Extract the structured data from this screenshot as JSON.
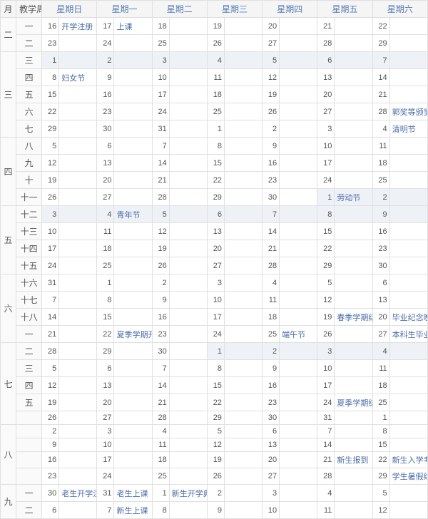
{
  "headers": {
    "month": "月",
    "week": "教学周",
    "sun": "星期日",
    "mon": "星期一",
    "tue": "星期二",
    "wed": "星期三",
    "thu": "星期四",
    "fri": "星期五",
    "sat": "星期六"
  },
  "rows": [
    {
      "m": "二",
      "w": "一",
      "d": [
        16,
        17,
        18,
        19,
        20,
        21,
        22
      ],
      "e": [
        "开学注册",
        "上课",
        "",
        "",
        "",
        "",
        ""
      ],
      "alt": 0
    },
    {
      "w": "二",
      "d": [
        23,
        24,
        25,
        26,
        27,
        28,
        29
      ],
      "e": [
        "",
        "",
        "",
        "",
        "",
        "",
        ""
      ],
      "alt": 0
    },
    {
      "m": "三",
      "ms": 5,
      "w": "三",
      "d": [
        1,
        2,
        3,
        4,
        5,
        6,
        7
      ],
      "e": [
        "",
        "",
        "",
        "",
        "",
        "",
        ""
      ],
      "alt": 1
    },
    {
      "w": "四",
      "d": [
        8,
        9,
        10,
        11,
        12,
        13,
        14
      ],
      "e": [
        "妇女节",
        "",
        "",
        "",
        "",
        "",
        ""
      ],
      "alt": 0
    },
    {
      "w": "五",
      "d": [
        15,
        16,
        17,
        18,
        19,
        20,
        21
      ],
      "e": [
        "",
        "",
        "",
        "",
        "",
        "",
        ""
      ],
      "alt": 0
    },
    {
      "w": "六",
      "d": [
        22,
        23,
        24,
        25,
        26,
        27,
        28
      ],
      "e": [
        "",
        "",
        "",
        "",
        "",
        "",
        "郭奖等颁奖典礼"
      ],
      "alt": 0
    },
    {
      "w": "七",
      "d": [
        29,
        30,
        31,
        1,
        2,
        3,
        4
      ],
      "e": [
        "",
        "",
        "",
        "",
        "",
        "",
        "清明节"
      ],
      "alt": 0
    },
    {
      "m": "四",
      "ms": 4,
      "w": "八",
      "d": [
        5,
        6,
        7,
        8,
        9,
        10,
        11
      ],
      "e": [
        "",
        "",
        "",
        "",
        "",
        "",
        ""
      ],
      "alt": 0
    },
    {
      "w": "九",
      "d": [
        12,
        13,
        14,
        15,
        16,
        17,
        18
      ],
      "e": [
        "",
        "",
        "",
        "",
        "",
        "",
        ""
      ],
      "alt": 0
    },
    {
      "w": "十",
      "d": [
        19,
        20,
        21,
        22,
        23,
        24,
        25
      ],
      "e": [
        "",
        "",
        "",
        "",
        "",
        "",
        ""
      ],
      "alt": 0
    },
    {
      "w": "十一",
      "d": [
        26,
        27,
        28,
        29,
        30,
        1,
        2
      ],
      "e": [
        "",
        "",
        "",
        "",
        "",
        "劳动节",
        ""
      ],
      "alt": 1,
      "altCols": [
        5,
        6
      ]
    },
    {
      "m": "五",
      "ms": 4,
      "w": "十二",
      "d": [
        3,
        4,
        5,
        6,
        7,
        8,
        9
      ],
      "e": [
        "",
        "青年节",
        "",
        "",
        "",
        "",
        ""
      ],
      "alt": 1
    },
    {
      "w": "十三",
      "d": [
        10,
        11,
        12,
        13,
        14,
        15,
        16
      ],
      "e": [
        "",
        "",
        "",
        "",
        "",
        "",
        ""
      ],
      "alt": 0
    },
    {
      "w": "十四",
      "d": [
        17,
        18,
        19,
        20,
        21,
        22,
        23
      ],
      "e": [
        "",
        "",
        "",
        "",
        "",
        "",
        ""
      ],
      "alt": 0
    },
    {
      "w": "十五",
      "d": [
        24,
        25,
        26,
        27,
        28,
        29,
        30
      ],
      "e": [
        "",
        "",
        "",
        "",
        "",
        "",
        ""
      ],
      "alt": 0
    },
    {
      "m": "六",
      "ms": 4,
      "w": "十六",
      "d": [
        31,
        1,
        2,
        3,
        4,
        5,
        6
      ],
      "e": [
        "",
        "",
        "",
        "",
        "",
        "",
        ""
      ],
      "alt": 0
    },
    {
      "w": "十七",
      "d": [
        7,
        8,
        9,
        10,
        11,
        12,
        13
      ],
      "e": [
        "",
        "",
        "",
        "",
        "",
        "",
        ""
      ],
      "alt": 0
    },
    {
      "w": "十八",
      "d": [
        14,
        15,
        16,
        17,
        18,
        19,
        20
      ],
      "e": [
        "",
        "",
        "",
        "",
        "",
        "春季学期结束",
        "毕业纪念晚会"
      ],
      "alt": 0
    },
    {
      "w": "一",
      "d": [
        21,
        22,
        23,
        24,
        25,
        26,
        27
      ],
      "e": [
        "",
        "夏季学期开始",
        "",
        "",
        "端午节",
        "",
        "本科生毕业典礼"
      ],
      "alt": 0
    },
    {
      "m": "七",
      "ms": 5,
      "w": "二",
      "d": [
        28,
        29,
        30,
        1,
        2,
        3,
        4
      ],
      "e": [
        "",
        "",
        "",
        "",
        "",
        "",
        ""
      ],
      "alt": 1,
      "altCols": [
        3,
        4,
        5,
        6
      ]
    },
    {
      "w": "三",
      "d": [
        5,
        6,
        7,
        8,
        9,
        10,
        11
      ],
      "e": [
        "",
        "",
        "",
        "",
        "",
        "",
        ""
      ],
      "alt": 0
    },
    {
      "w": "四",
      "d": [
        12,
        13,
        14,
        15,
        16,
        17,
        18
      ],
      "e": [
        "",
        "",
        "",
        "",
        "",
        "",
        ""
      ],
      "alt": 0
    },
    {
      "w": "五",
      "d": [
        19,
        20,
        21,
        22,
        23,
        24,
        25
      ],
      "e": [
        "",
        "",
        "",
        "",
        "",
        "夏季学期结束",
        ""
      ],
      "alt": 0
    },
    {
      "w": "",
      "d": [
        26,
        27,
        28,
        29,
        30,
        31,
        1
      ],
      "e": [
        "",
        "",
        "",
        "",
        "",
        "",
        ""
      ],
      "alt": 0
    },
    {
      "m": "八",
      "ms": 4,
      "w": "",
      "d": [
        2,
        3,
        4,
        5,
        6,
        7,
        8
      ],
      "e": [
        "",
        "",
        "",
        "",
        "",
        "",
        ""
      ],
      "alt": 0
    },
    {
      "w": "",
      "d": [
        9,
        10,
        11,
        12,
        13,
        14,
        15
      ],
      "e": [
        "",
        "",
        "",
        "",
        "",
        "",
        ""
      ],
      "alt": 0
    },
    {
      "w": "",
      "d": [
        16,
        17,
        18,
        19,
        20,
        21,
        22
      ],
      "e": [
        "",
        "",
        "",
        "",
        "",
        "新生报到",
        "新生入学考试"
      ],
      "alt": 0
    },
    {
      "w": "",
      "d": [
        23,
        24,
        25,
        26,
        27,
        28,
        29
      ],
      "e": [
        "",
        "",
        "",
        "",
        "",
        "",
        "学生暑假结束"
      ],
      "alt": 0
    },
    {
      "m": "九",
      "ms": 2,
      "w": "一",
      "d": [
        30,
        31,
        1,
        2,
        3,
        4,
        5
      ],
      "e": [
        "老生开学注册",
        "老生上课",
        "新生开学典礼",
        "",
        "",
        "",
        ""
      ],
      "alt": 0
    },
    {
      "w": "二",
      "d": [
        6,
        7,
        8,
        9,
        10,
        11,
        12
      ],
      "e": [
        "",
        "新生上课",
        "",
        "",
        "",
        "",
        ""
      ],
      "alt": 0
    }
  ],
  "style": {
    "bg": "#ffffff",
    "altBg": "#eef2f7",
    "border": "#e0e0e0",
    "headerBg": "#f5f5f5",
    "headerColor": "#5a7fb5",
    "eventColor": "#4a6ca8",
    "fontSize": 12
  }
}
